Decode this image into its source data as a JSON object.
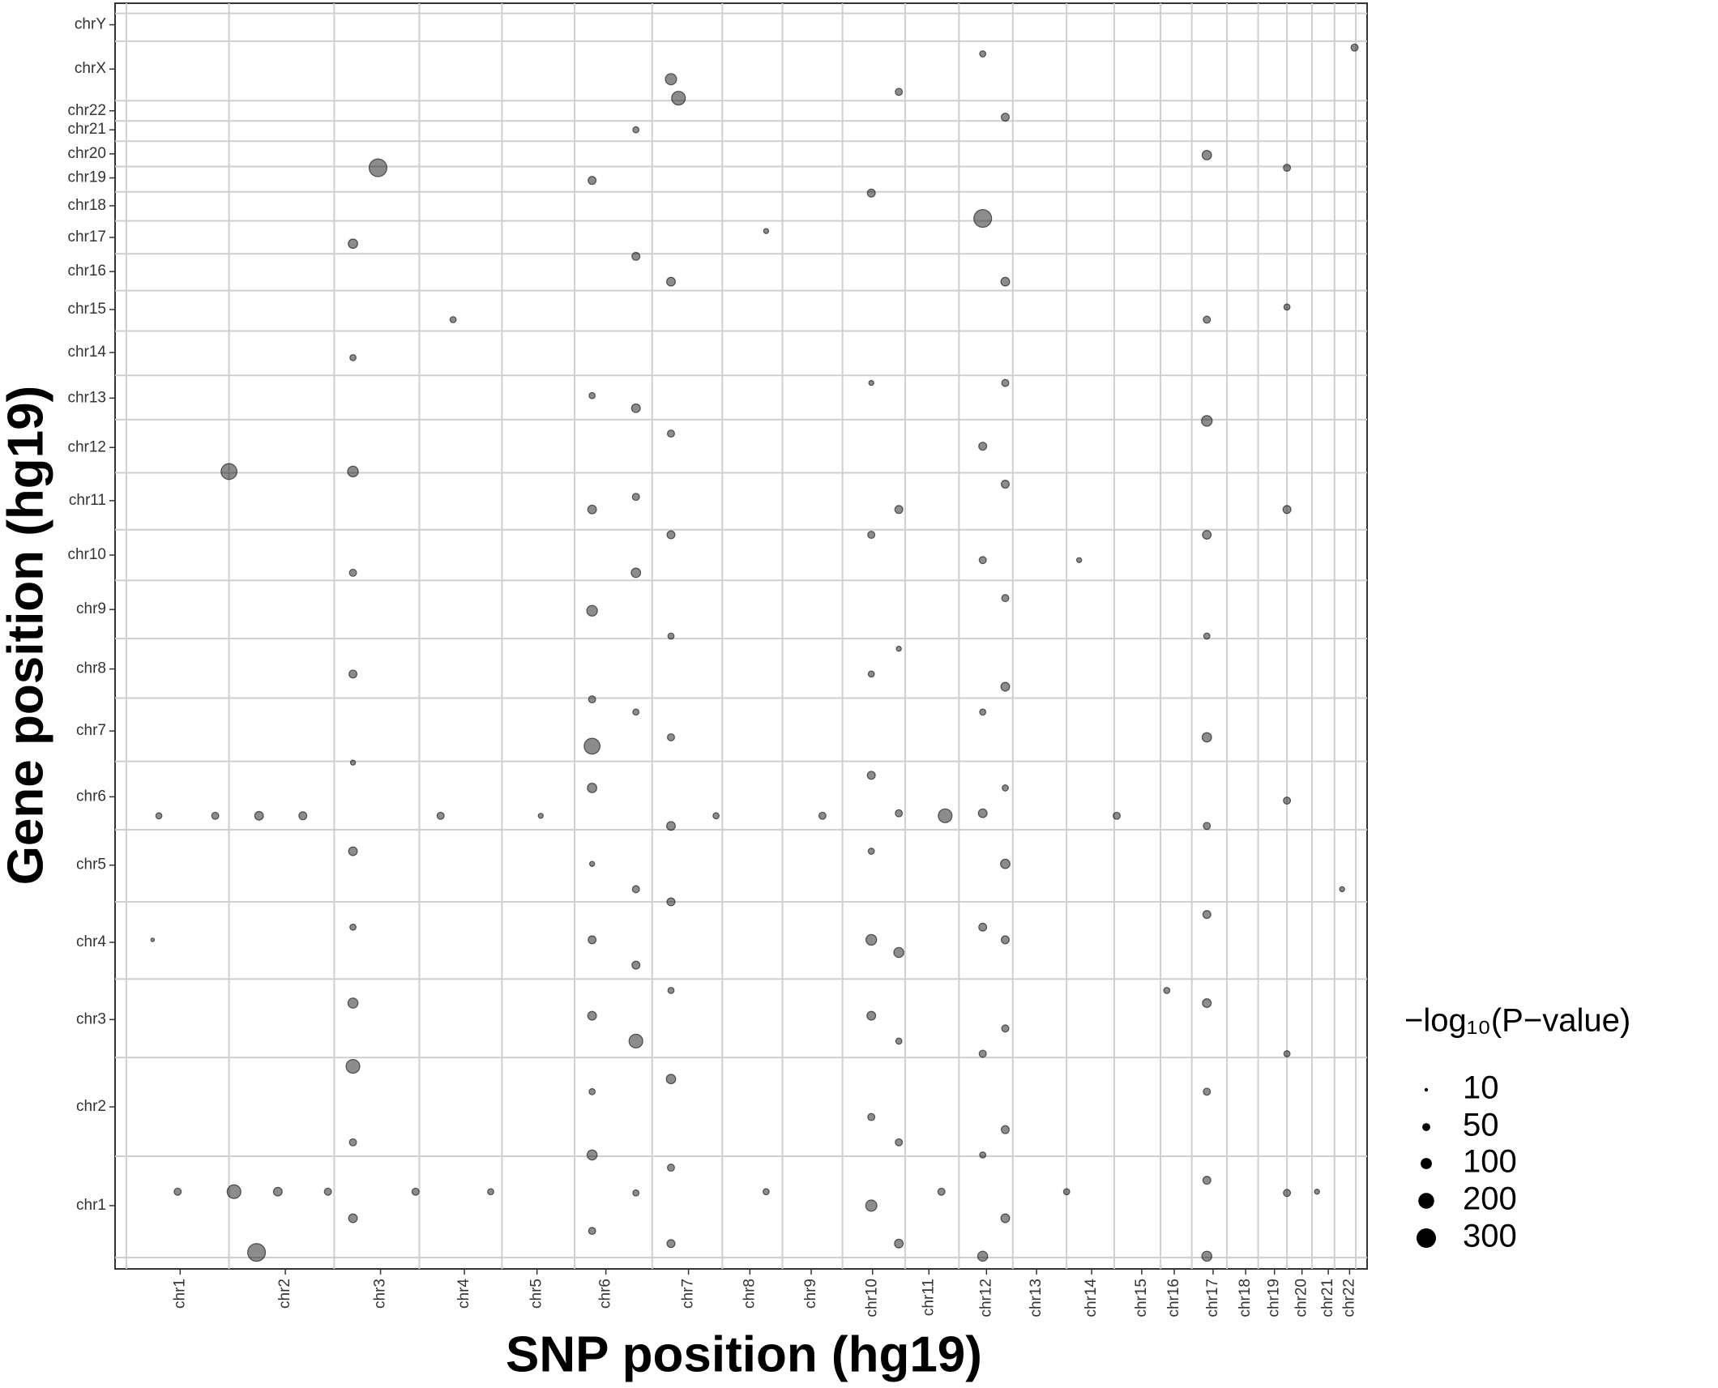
{
  "chart_data": {
    "type": "scatter",
    "x_label": "SNP position (hg19)",
    "y_label": "Gene position (hg19)",
    "size_title": "−log₁₀(P−value)",
    "size_legend": [
      10,
      50,
      100,
      200,
      300
    ],
    "color": "#000000",
    "xlim": [
      0,
      100
    ],
    "ylim": [
      0,
      100
    ],
    "xticks": [
      {
        "value": 5.2,
        "label": "chr1"
      },
      {
        "value": 13.6,
        "label": "chr2"
      },
      {
        "value": 21.2,
        "label": "chr3"
      },
      {
        "value": 27.9,
        "label": "chr4"
      },
      {
        "value": 33.7,
        "label": "chr5"
      },
      {
        "value": 39.2,
        "label": "chr6"
      },
      {
        "value": 45.8,
        "label": "chr7"
      },
      {
        "value": 50.7,
        "label": "chr8"
      },
      {
        "value": 55.6,
        "label": "chr9"
      },
      {
        "value": 60.5,
        "label": "chr10"
      },
      {
        "value": 65.0,
        "label": "chr11"
      },
      {
        "value": 69.6,
        "label": "chr12"
      },
      {
        "value": 73.6,
        "label": "chr13"
      },
      {
        "value": 78.0,
        "label": "chr14"
      },
      {
        "value": 82.0,
        "label": "chr15"
      },
      {
        "value": 84.6,
        "label": "chr16"
      },
      {
        "value": 87.7,
        "label": "chr17"
      },
      {
        "value": 90.3,
        "label": "chr18"
      },
      {
        "value": 92.6,
        "label": "chr19"
      },
      {
        "value": 94.8,
        "label": "chr20"
      },
      {
        "value": 96.9,
        "label": "chr21"
      },
      {
        "value": 98.6,
        "label": "chr22"
      }
    ],
    "yticks": [
      {
        "value": 5.0,
        "label": "chr1"
      },
      {
        "value": 12.8,
        "label": "chr2"
      },
      {
        "value": 19.7,
        "label": "chr3"
      },
      {
        "value": 25.8,
        "label": "chr4"
      },
      {
        "value": 31.9,
        "label": "chr5"
      },
      {
        "value": 37.3,
        "label": "chr6"
      },
      {
        "value": 42.5,
        "label": "chr7"
      },
      {
        "value": 47.4,
        "label": "chr8"
      },
      {
        "value": 52.1,
        "label": "chr9"
      },
      {
        "value": 56.4,
        "label": "chr10"
      },
      {
        "value": 60.7,
        "label": "chr11"
      },
      {
        "value": 64.9,
        "label": "chr12"
      },
      {
        "value": 68.8,
        "label": "chr13"
      },
      {
        "value": 72.4,
        "label": "chr14"
      },
      {
        "value": 75.8,
        "label": "chr15"
      },
      {
        "value": 78.8,
        "label": "chr16"
      },
      {
        "value": 81.5,
        "label": "chr17"
      },
      {
        "value": 84.0,
        "label": "chr18"
      },
      {
        "value": 86.2,
        "label": "chr19"
      },
      {
        "value": 88.1,
        "label": "chr20"
      },
      {
        "value": 90.0,
        "label": "chr21"
      },
      {
        "value": 91.5,
        "label": "chr22"
      },
      {
        "value": 94.8,
        "label": "chrX"
      },
      {
        "value": 98.3,
        "label": "chrY"
      }
    ],
    "xgrid": [
      0.9,
      9.1,
      17.5,
      24.3,
      30.9,
      36.7,
      42.9,
      48.5,
      53.3,
      58.1,
      63.1,
      67.4,
      71.7,
      76.0,
      79.8,
      83.5,
      86.0,
      88.8,
      91.3,
      93.6,
      95.6,
      97.4,
      99.1
    ],
    "ygrid": [
      0.9,
      8.9,
      16.7,
      22.9,
      29.0,
      34.7,
      40.1,
      45.1,
      49.8,
      54.4,
      58.4,
      62.9,
      67.1,
      70.6,
      74.1,
      77.3,
      80.2,
      82.8,
      85.1,
      87.1,
      89.1,
      90.7,
      92.3,
      97.0,
      99.2
    ],
    "grid": true,
    "x": [
      19.0,
      19.0,
      19.0,
      19.0,
      19.0,
      19.0,
      19.0,
      19.0,
      19.0,
      19.0,
      19.0,
      19.0,
      38.1,
      38.1,
      38.1,
      38.1,
      38.1,
      38.1,
      38.1,
      38.1,
      38.1,
      38.1,
      38.1,
      38.1,
      41.6,
      41.6,
      41.6,
      41.6,
      41.6,
      41.6,
      41.6,
      41.6,
      41.6,
      41.6,
      44.4,
      44.4,
      44.4,
      44.4,
      44.4,
      44.4,
      44.4,
      44.4,
      44.4,
      44.4,
      44.4,
      44.4,
      60.4,
      60.4,
      60.4,
      60.4,
      60.4,
      60.4,
      60.4,
      60.4,
      60.4,
      60.4,
      62.6,
      62.6,
      62.6,
      62.6,
      62.6,
      62.6,
      62.6,
      62.6,
      69.3,
      69.3,
      69.3,
      69.3,
      69.3,
      69.3,
      69.3,
      69.3,
      69.3,
      69.3,
      71.1,
      71.1,
      71.1,
      71.1,
      71.1,
      71.1,
      71.1,
      71.1,
      71.1,
      71.1,
      71.1,
      71.1,
      87.2,
      87.2,
      87.2,
      87.2,
      87.2,
      87.2,
      87.2,
      87.2,
      87.2,
      87.2,
      87.2,
      87.2,
      93.6,
      93.6,
      93.6,
      93.6,
      93.6,
      93.6,
      3.5,
      8.0,
      11.5,
      15.0,
      26.0,
      34.0,
      48.0,
      56.5,
      66.3,
      80.0,
      5.0,
      9.5,
      13.0,
      17.0,
      24.0,
      30.0,
      52.0,
      66.0,
      76.0,
      96.0,
      11.3,
      9.1,
      21.0,
      38.1,
      3.0,
      27.0,
      52.0,
      77.0,
      84.0,
      98.0,
      99.0,
      45.0
    ],
    "y": [
      4,
      10,
      16,
      21,
      27,
      33,
      40,
      47,
      55,
      63,
      72,
      81,
      3,
      9,
      14,
      20,
      26,
      32,
      38,
      45,
      52,
      60,
      69,
      86,
      6,
      18,
      24,
      30,
      44,
      55,
      61,
      68,
      80,
      90,
      2,
      8,
      15,
      22,
      29,
      35,
      42,
      50,
      58,
      66,
      78,
      94,
      5,
      12,
      20,
      26,
      33,
      39,
      47,
      58,
      70,
      85,
      2,
      10,
      18,
      25,
      36,
      49,
      60,
      93,
      1,
      9,
      17,
      27,
      36,
      44,
      56,
      65,
      83,
      96,
      4,
      11,
      19,
      26,
      32,
      38,
      46,
      53,
      62,
      70,
      78,
      91,
      1,
      7,
      14,
      21,
      28,
      35,
      42,
      50,
      58,
      67,
      75,
      88,
      6,
      17,
      37,
      60,
      76,
      87,
      35.8,
      35.8,
      35.8,
      35.8,
      35.8,
      35.8,
      35.8,
      35.8,
      35.8,
      35.8,
      6.1,
      6.1,
      6.1,
      6.1,
      6.1,
      6.1,
      6.1,
      6.1,
      6.1,
      6.1,
      1.3,
      63.0,
      87.0,
      41.3,
      26.0,
      75.0,
      82.0,
      56.0,
      22.0,
      30.0,
      96.5,
      92.5
    ],
    "sizes": [
      60,
      40,
      150,
      80,
      30,
      60,
      20,
      50,
      40,
      90,
      30,
      70,
      40,
      80,
      30,
      60,
      50,
      20,
      70,
      40,
      90,
      60,
      30,
      50,
      30,
      150,
      50,
      40,
      30,
      70,
      40,
      60,
      50,
      30,
      50,
      40,
      70,
      30,
      50,
      60,
      40,
      30,
      50,
      40,
      60,
      100,
      100,
      40,
      60,
      90,
      30,
      50,
      30,
      40,
      20,
      50,
      60,
      40,
      30,
      80,
      40,
      20,
      50,
      40,
      80,
      30,
      40,
      50,
      60,
      30,
      40,
      50,
      250,
      30,
      60,
      50,
      40,
      50,
      70,
      30,
      60,
      40,
      50,
      40,
      60,
      50,
      80,
      50,
      40,
      60,
      50,
      40,
      70,
      30,
      60,
      90,
      40,
      70,
      40,
      30,
      40,
      50,
      30,
      40,
      30,
      40,
      60,
      50,
      40,
      20,
      30,
      40,
      150,
      40,
      40,
      150,
      60,
      40,
      40,
      30,
      30,
      40,
      30,
      20,
      250,
      200,
      250,
      200,
      10,
      30,
      20,
      20,
      30,
      20,
      40,
      150
    ]
  }
}
